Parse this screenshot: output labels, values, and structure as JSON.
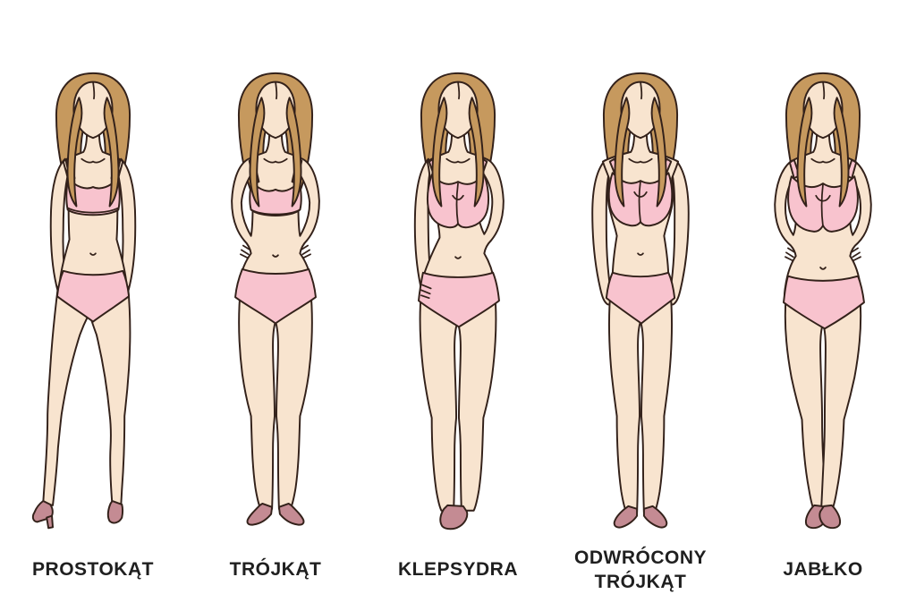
{
  "colors": {
    "skin": "#F8E4CF",
    "outline": "#33211A",
    "hair": "#C6995E",
    "underwear": "#F8C3CE",
    "shoes": "#C48B93",
    "text": "#1F1F1F",
    "background": "#FFFFFF"
  },
  "figures": [
    {
      "label": "PROSTOKĄT"
    },
    {
      "label": "TRÓJKĄT"
    },
    {
      "label": "KLEPSYDRA"
    },
    {
      "label": "ODWRÓCONY TRÓJKĄT"
    },
    {
      "label": "JABŁKO"
    }
  ]
}
